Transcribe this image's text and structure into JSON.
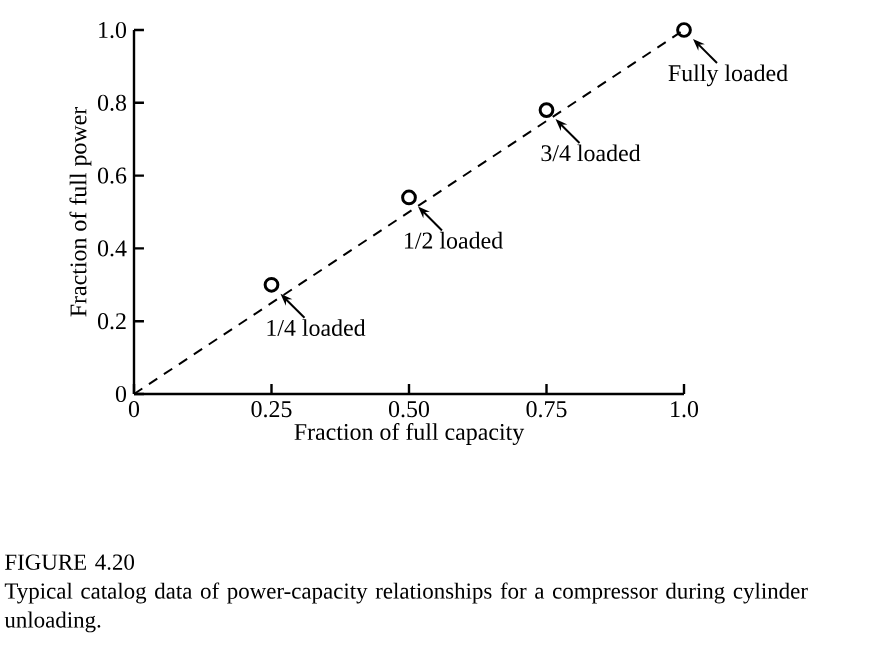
{
  "chart_data": {
    "type": "scatter",
    "xlabel": "Fraction of full capacity",
    "ylabel": "Fraction of full power",
    "xlim": [
      0,
      1.0
    ],
    "ylim": [
      0,
      1.0
    ],
    "xticks": [
      0,
      {
        "value": 0.25,
        "label": "0.25"
      },
      {
        "value": 0.5,
        "label": "0.50"
      },
      {
        "value": 0.75,
        "label": "0.75"
      },
      {
        "value": 1.0,
        "label": "1.0"
      }
    ],
    "yticks": [
      0,
      {
        "value": 0.2,
        "label": "0.2"
      },
      {
        "value": 0.4,
        "label": "0.4"
      },
      {
        "value": 0.6,
        "label": "0.6"
      },
      {
        "value": 0.8,
        "label": "0.8"
      },
      {
        "value": 1.0,
        "label": "1.0"
      }
    ],
    "grid": false,
    "series": [
      {
        "type": "line",
        "color": "#000000",
        "line_style": "dashed",
        "marker": "none",
        "x": [
          0,
          1.0
        ],
        "values": [
          0,
          1.0
        ]
      },
      {
        "type": "scatter",
        "color": "#000000",
        "marker": "circle",
        "x": [
          0.25,
          0.5,
          0.75,
          1.0
        ],
        "values": [
          0.3,
          0.54,
          0.78,
          1.0
        ]
      }
    ],
    "annotations": [
      {
        "text": "1/4 loaded",
        "x": 0.25,
        "y": 0.3
      },
      {
        "text": "1/2 loaded",
        "x": 0.5,
        "y": 0.54
      },
      {
        "text": "3/4 loaded",
        "x": 0.75,
        "y": 0.78
      },
      {
        "text": "Fully loaded",
        "x": 1.0,
        "y": 1.0
      },
      "FIGURE 4.20",
      "Typical catalog data of power-capacity relationships for a compressor during cylinder unloading."
    ]
  }
}
